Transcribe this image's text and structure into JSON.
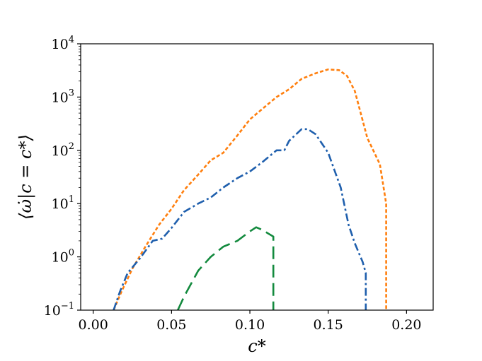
{
  "chart_data": {
    "type": "line",
    "xlabel": "c*",
    "ylabel": "⟨ω̇|c = c*⟩",
    "yscale": "log",
    "xlim": [
      -0.008,
      0.217
    ],
    "ylim": [
      0.1,
      10000
    ],
    "grid": false,
    "x_ticks": [
      0.0,
      0.05,
      0.1,
      0.15,
      0.2
    ],
    "x_tick_labels": [
      "0.00",
      "0.05",
      "0.10",
      "0.15",
      "0.20"
    ],
    "y_ticks": [
      0.1,
      1,
      10,
      100,
      1000,
      10000
    ],
    "y_tick_labels": [
      {
        "base": "10",
        "exp": "−1"
      },
      {
        "base": "10",
        "exp": "0"
      },
      {
        "base": "10",
        "exp": "1"
      },
      {
        "base": "10",
        "exp": "2"
      },
      {
        "base": "10",
        "exp": "3"
      },
      {
        "base": "10",
        "exp": "4"
      }
    ],
    "series": [
      {
        "color": "#ff7f0e",
        "linestyle": "dotted",
        "x": [
          0.013,
          0.018,
          0.025,
          0.033,
          0.042,
          0.05,
          0.058,
          0.067,
          0.075,
          0.083,
          0.092,
          0.1,
          0.108,
          0.117,
          0.125,
          0.133,
          0.142,
          0.15,
          0.157,
          0.162,
          0.167,
          0.175,
          0.183,
          0.187,
          0.187
        ],
        "y": [
          0.1,
          0.22,
          0.6,
          1.5,
          4.0,
          8.0,
          18,
          35,
          65,
          90,
          190,
          380,
          600,
          1000,
          1400,
          2200,
          2800,
          3300,
          3200,
          2500,
          1300,
          170,
          55,
          10,
          0.1
        ]
      },
      {
        "color": "#1f5fad",
        "linestyle": "dashdot",
        "x": [
          0.013,
          0.017,
          0.022,
          0.03,
          0.038,
          0.044,
          0.05,
          0.058,
          0.067,
          0.075,
          0.083,
          0.092,
          0.1,
          0.108,
          0.117,
          0.122,
          0.125,
          0.133,
          0.137,
          0.142,
          0.15,
          0.158,
          0.163,
          0.167,
          0.172,
          0.174,
          0.174
        ],
        "y": [
          0.1,
          0.22,
          0.5,
          0.95,
          2.0,
          2.2,
          3.5,
          7.0,
          10,
          13,
          20,
          30,
          40,
          60,
          100,
          100,
          150,
          250,
          250,
          200,
          90,
          20,
          4.0,
          1.8,
          0.8,
          0.5,
          0.1
        ]
      },
      {
        "color": "#138a3e",
        "linestyle": "dashed",
        "x": [
          0.054,
          0.058,
          0.067,
          0.075,
          0.083,
          0.092,
          0.1,
          0.104,
          0.108,
          0.115,
          0.115
        ],
        "y": [
          0.1,
          0.18,
          0.55,
          1.0,
          1.55,
          2.0,
          3.0,
          3.6,
          3.2,
          2.4,
          0.1
        ]
      }
    ]
  }
}
